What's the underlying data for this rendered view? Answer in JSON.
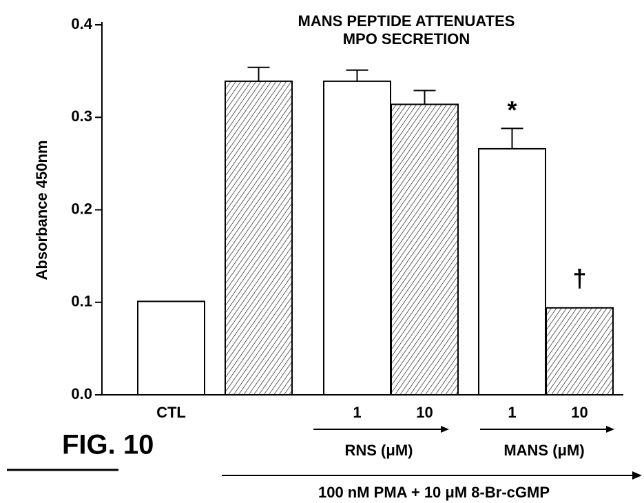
{
  "chart_data": {
    "type": "bar",
    "title": [
      "MANS PEPTIDE ATTENUATES",
      "MPO SECRETION"
    ],
    "ylabel": "Absorbance 450nm",
    "categories": [
      "CTL",
      null,
      "1",
      "10",
      "1",
      "10"
    ],
    "values": [
      0.101,
      0.339,
      0.339,
      0.314,
      0.266,
      0.094
    ],
    "errors": [
      null,
      0.015,
      0.012,
      0.015,
      0.022,
      null
    ],
    "patterns": [
      "none",
      "hatch",
      "none",
      "hatch",
      "none",
      "hatch"
    ],
    "value_annotations": [
      null,
      null,
      null,
      null,
      "*",
      "†"
    ],
    "group_labels": [
      "RNS (μM)",
      "MANS (μM)"
    ],
    "treatment_label": "100 nM PMA + 10 μM 8-Br-cGMP",
    "figure_label": "FIG. 10",
    "color": "#000000",
    "ylim": [
      0,
      0.4
    ],
    "yticks": [
      {
        "value": 0,
        "label": "0.0"
      },
      0.1,
      0.2,
      0.3,
      0.4
    ],
    "grid": false
  }
}
